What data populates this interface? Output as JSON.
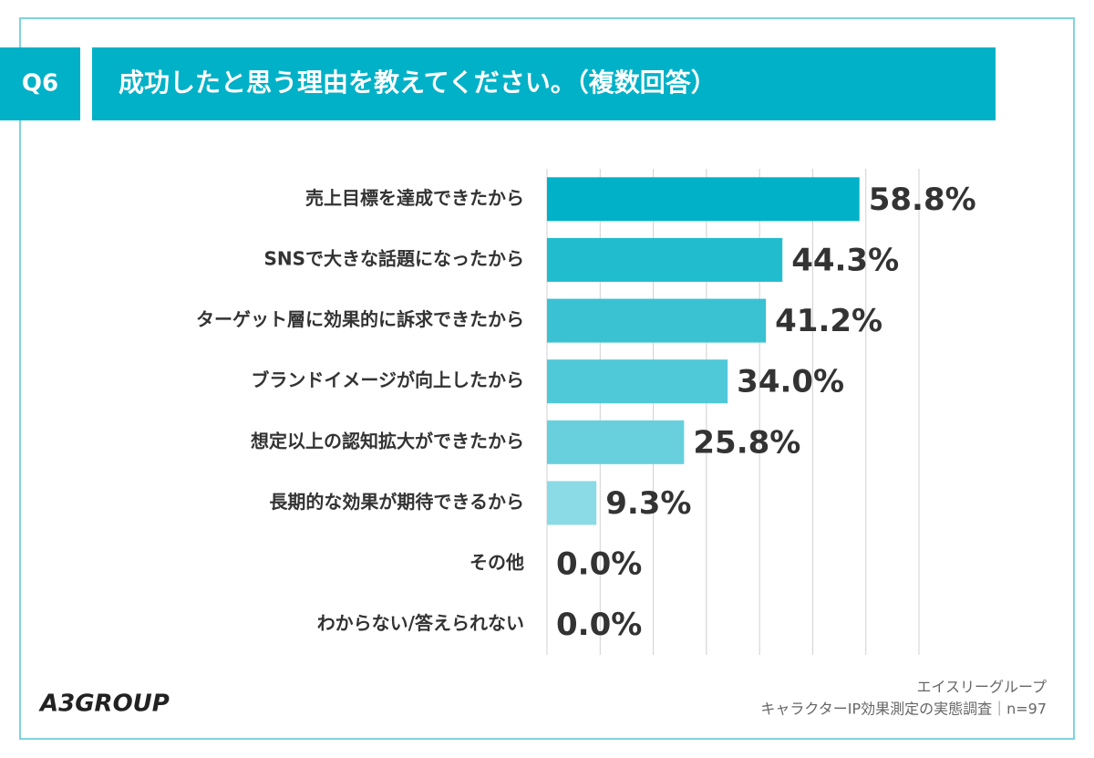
{
  "header": {
    "question": "Q6",
    "title": "成功したと思う理由を教えてください。（複数回答）"
  },
  "chart_data": {
    "type": "bar",
    "orientation": "horizontal",
    "categories": [
      "売上目標を達成できたから",
      "SNSで大きな話題になったから",
      "ターゲット層に効果的に訴求できたから",
      "ブランドイメージが向上したから",
      "想定以上の認知拡大ができたから",
      "長期的な効果が期待できるから",
      "その他",
      "わからない/答えられない"
    ],
    "values": [
      58.8,
      44.3,
      41.2,
      34.0,
      25.8,
      9.3,
      0.0,
      0.0
    ],
    "value_labels": [
      "58.8%",
      "44.3%",
      "41.2%",
      "34.0%",
      "25.8%",
      "9.3%",
      "0.0%",
      "0.0%"
    ],
    "colors": [
      "#00b1c7",
      "#22bccf",
      "#3ac2d3",
      "#4fc8d8",
      "#68d0dd",
      "#8adbe5",
      "#a6e3eb",
      "#a6e3eb"
    ],
    "xlim": [
      0,
      70
    ],
    "xticks": [
      0,
      10,
      20,
      30,
      40,
      50,
      60,
      70
    ],
    "grid": true
  },
  "footer": {
    "company": "エイスリーグループ",
    "source": "キャラクターIP効果測定の実態調査｜n=97",
    "logo": "A3GROUP"
  }
}
